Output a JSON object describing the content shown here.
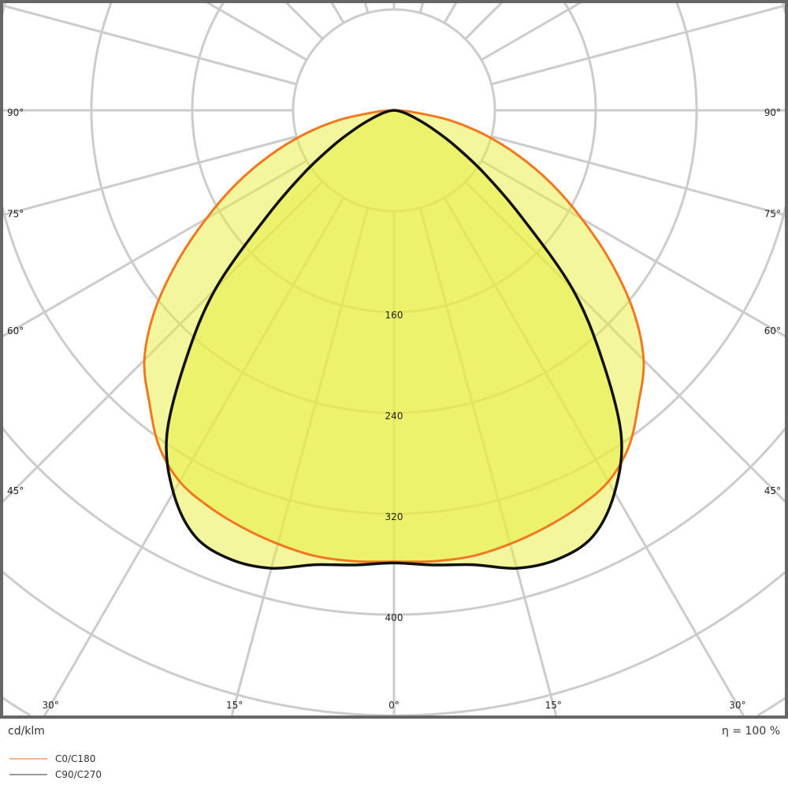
{
  "chart_data": {
    "type": "polar",
    "unit_label": "cd/klm",
    "efficiency_label": "η = 100 %",
    "rings": [
      80,
      160,
      240,
      320,
      400,
      480,
      560
    ],
    "ring_labels": [
      "160",
      "240",
      "320",
      "400"
    ],
    "ring_label_values": [
      160,
      240,
      320,
      400
    ],
    "radial_step_deg": 15,
    "bottom_angle_labels": [
      "30°",
      "15°",
      "0°",
      "15°",
      "30°"
    ],
    "bottom_angle_values": [
      -30,
      -15,
      0,
      15,
      30
    ],
    "side_angle_labels": [
      "45°",
      "60°",
      "75°",
      "90°"
    ],
    "side_angle_values": [
      45,
      60,
      75,
      90
    ],
    "grid": true,
    "legend_position": "bottom-left",
    "angles": [
      0,
      5,
      10,
      15,
      20,
      25,
      30,
      35,
      40,
      45,
      50,
      55,
      60,
      65,
      70,
      75,
      80,
      85,
      90
    ],
    "series": [
      {
        "name": "C0/C180",
        "color": "#f07820",
        "legend_color": "#f5b88a",
        "values": [
          358,
          359,
          359,
          356,
          352,
          347,
          340,
          325,
          302,
          280,
          248,
          210,
          172,
          138,
          105,
          74,
          44,
          14,
          0
        ]
      },
      {
        "name": "C90/C270",
        "color": "#111111",
        "legend_color": "#999999",
        "values": [
          359,
          362,
          366,
          376,
          379,
          373,
          350,
          314,
          256,
          200,
          133,
          88,
          55,
          32,
          18,
          10,
          5,
          2,
          0
        ]
      }
    ],
    "fill_color": "#e8ee3c"
  }
}
